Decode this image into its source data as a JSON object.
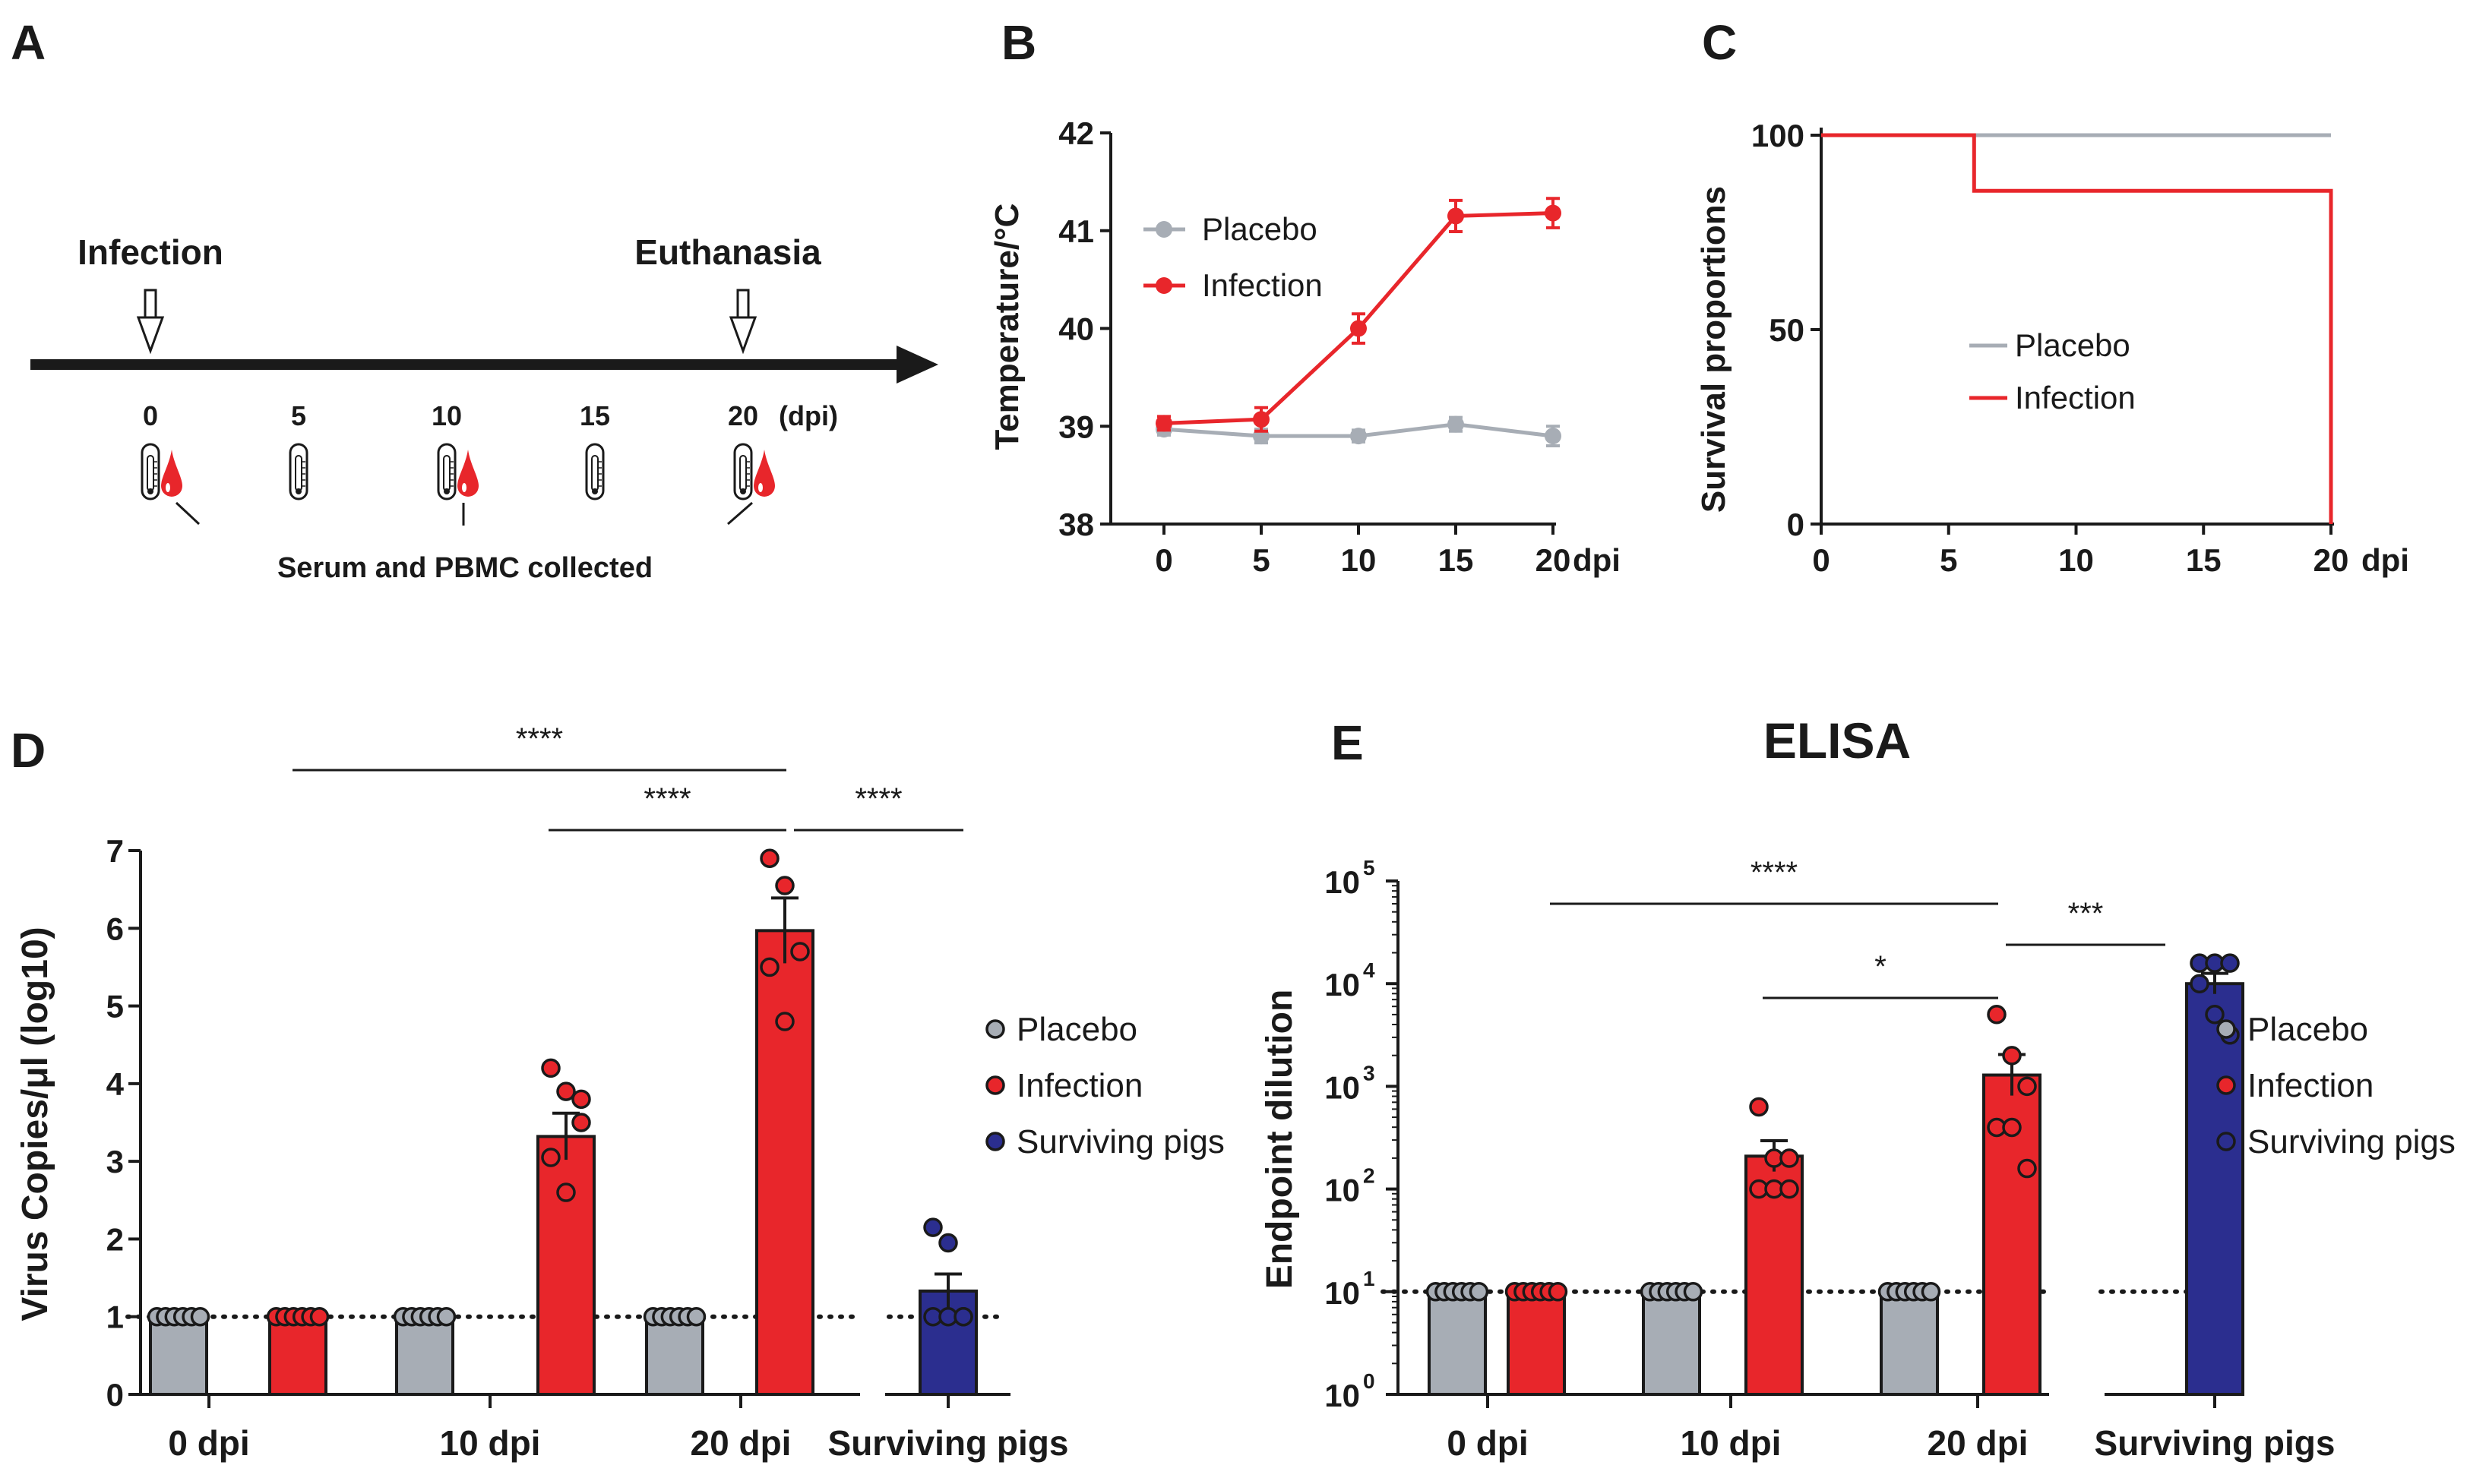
{
  "panels": {
    "a": "A",
    "b": "B",
    "c": "C",
    "d": "D",
    "e": "E"
  },
  "colors": {
    "placebo": "#a7adb5",
    "infection": "#e8262b",
    "surviving": "#2b2e8f",
    "axis": "#1a1a1a"
  },
  "timeline": {
    "infection_label": "Infection",
    "euthanasia_label": "Euthanasia",
    "ticks": [
      "0",
      "5",
      "10",
      "15",
      "20"
    ],
    "unit": "(dpi)",
    "collected_label": "Serum and PBMC collected",
    "icons": [
      "thermometer-icon",
      "blood-drop-icon"
    ]
  },
  "chart_data": [
    {
      "id": "B",
      "type": "line",
      "title": "",
      "xlabel": "dpi",
      "ylabel": "Temperature/°C",
      "x": [
        0,
        5,
        10,
        15,
        20
      ],
      "x_ticks": [
        "0",
        "5",
        "10",
        "15",
        "20"
      ],
      "ylim": [
        38,
        42
      ],
      "y_ticks": [
        "38",
        "39",
        "40",
        "41",
        "42"
      ],
      "legend_position": "top-left",
      "series": [
        {
          "name": "Placebo",
          "key": "placebo",
          "values": [
            38.97,
            38.9,
            38.9,
            39.02,
            38.9
          ],
          "err": [
            0.06,
            0.07,
            0.06,
            0.07,
            0.1
          ]
        },
        {
          "name": "Infection",
          "key": "infection",
          "values": [
            39.03,
            39.07,
            40.0,
            41.15,
            41.18
          ],
          "err": [
            0.07,
            0.12,
            0.15,
            0.16,
            0.15
          ]
        }
      ]
    },
    {
      "id": "C",
      "type": "line",
      "title": "",
      "xlabel": "dpi",
      "ylabel": "Survival proportions",
      "x_ticks": [
        "0",
        "5",
        "10",
        "15",
        "20"
      ],
      "xlim": [
        0,
        20
      ],
      "ylim": [
        0,
        100
      ],
      "y_ticks": [
        "0",
        "50",
        "100"
      ],
      "legend_position": "center",
      "series": [
        {
          "name": "Placebo",
          "key": "placebo",
          "steps": [
            [
              0,
              100
            ],
            [
              20,
              100
            ]
          ]
        },
        {
          "name": "Infection",
          "key": "infection",
          "steps": [
            [
              0,
              100
            ],
            [
              6,
              100
            ],
            [
              6,
              85.7
            ],
            [
              20,
              85.7
            ],
            [
              20,
              0
            ]
          ]
        }
      ]
    },
    {
      "id": "D",
      "type": "bar",
      "title": "",
      "xlabel": "",
      "ylabel": "Virus Copies/μl (log10)",
      "ylim": [
        0,
        7
      ],
      "y_ticks": [
        "0",
        "1",
        "2",
        "3",
        "4",
        "5",
        "6",
        "7"
      ],
      "detection_limit": 1,
      "categories": [
        "0 dpi",
        "10 dpi",
        "20 dpi",
        "Surviving pigs"
      ],
      "legend": [
        {
          "name": "Placebo",
          "key": "placebo"
        },
        {
          "name": "Infection",
          "key": "infection"
        },
        {
          "name": "Surviving pigs",
          "key": "surviving"
        }
      ],
      "bars": [
        {
          "group": 0,
          "key": "placebo",
          "value": 1.0,
          "err": 0,
          "points": [
            1,
            1,
            1,
            1,
            1,
            1
          ]
        },
        {
          "group": 0,
          "key": "infection",
          "value": 1.0,
          "err": 0,
          "points": [
            1,
            1,
            1,
            1,
            1,
            1
          ]
        },
        {
          "group": 1,
          "key": "placebo",
          "value": 1.0,
          "err": 0,
          "points": [
            1,
            1,
            1,
            1,
            1,
            1
          ]
        },
        {
          "group": 1,
          "key": "infection",
          "value": 3.32,
          "err": 0.3,
          "points": [
            4.2,
            3.9,
            3.5,
            3.05,
            2.6,
            3.8
          ]
        },
        {
          "group": 2,
          "key": "placebo",
          "value": 1.0,
          "err": 0,
          "points": [
            1,
            1,
            1,
            1,
            1,
            1
          ]
        },
        {
          "group": 2,
          "key": "infection",
          "value": 5.97,
          "err": 0.42,
          "points": [
            6.9,
            6.55,
            5.7,
            5.5,
            4.8
          ]
        },
        {
          "group": 3,
          "key": "surviving",
          "value": 1.33,
          "err": 0.22,
          "points": [
            2.15,
            1.95,
            1.0,
            1.0,
            1.0,
            1.0
          ]
        }
      ],
      "significance": [
        {
          "label": "****",
          "from": 0,
          "to": 2
        },
        {
          "label": "****",
          "from": 1,
          "to": 2
        },
        {
          "label": "****",
          "from": 2,
          "to": 3
        }
      ]
    },
    {
      "id": "E",
      "type": "bar",
      "title": "ELISA",
      "xlabel": "",
      "ylabel": "Endpoint dilution",
      "yscale": "log10",
      "ylim": [
        0,
        5
      ],
      "y_ticks": [
        "0",
        "1",
        "2",
        "3",
        "4",
        "5"
      ],
      "y_tick_base": "10",
      "detection_limit": 1,
      "categories": [
        "0 dpi",
        "10 dpi",
        "20 dpi",
        "Surviving pigs"
      ],
      "legend": [
        {
          "name": "Placebo",
          "key": "placebo"
        },
        {
          "name": "Infection",
          "key": "infection"
        },
        {
          "name": "Surviving pigs",
          "key": "surviving"
        }
      ],
      "bars": [
        {
          "group": 0,
          "key": "placebo",
          "value": 1.0,
          "err": 0,
          "points": [
            1,
            1,
            1,
            1,
            1,
            1
          ]
        },
        {
          "group": 0,
          "key": "infection",
          "value": 1.0,
          "err": 0,
          "points": [
            1,
            1,
            1,
            1,
            1,
            1
          ]
        },
        {
          "group": 1,
          "key": "placebo",
          "value": 1.0,
          "err": 0,
          "points": [
            1,
            1,
            1,
            1,
            1,
            1
          ]
        },
        {
          "group": 1,
          "key": "infection",
          "value": 2.32,
          "err": 0.15,
          "points": [
            2.8,
            2.3,
            2.3,
            2.0,
            2.0,
            2.0
          ]
        },
        {
          "group": 2,
          "key": "placebo",
          "value": 1.0,
          "err": 0,
          "points": [
            1,
            1,
            1,
            1,
            1,
            1
          ]
        },
        {
          "group": 2,
          "key": "infection",
          "value": 3.11,
          "err": 0.2,
          "points": [
            3.7,
            3.3,
            3.0,
            2.6,
            2.6,
            2.2
          ]
        },
        {
          "group": 3,
          "key": "surviving",
          "value": 4.0,
          "err": 0.1,
          "points": [
            4.2,
            4.2,
            4.2,
            4.0,
            3.7,
            3.5
          ]
        }
      ],
      "significance": [
        {
          "label": "****",
          "from": 0,
          "to": 2
        },
        {
          "label": "*",
          "from": 1,
          "to": 2
        },
        {
          "label": "***",
          "from": 2,
          "to": 3
        }
      ]
    }
  ]
}
